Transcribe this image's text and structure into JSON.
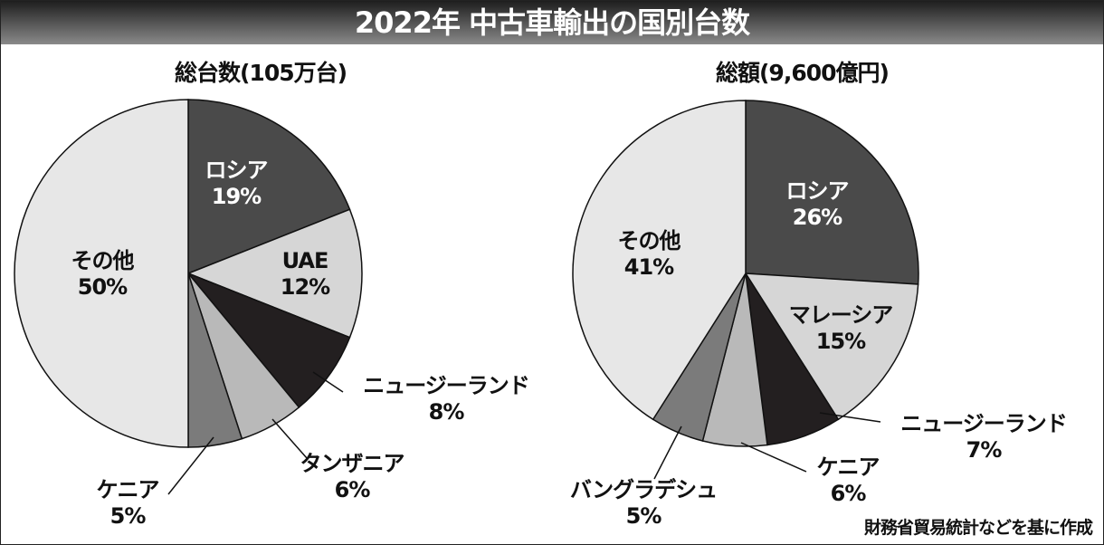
{
  "title": "2022年  中古車輸出の国別台数",
  "source": "財務省貿易統計などを基に作成",
  "chart_data": [
    {
      "type": "pie",
      "title": "総台数(105万台)",
      "categories": [
        "ロシア",
        "UAE",
        "ニュージーランド",
        "タンザニア",
        "ケニア",
        "その他"
      ],
      "values": [
        19,
        12,
        8,
        6,
        5,
        50
      ],
      "labels": [
        "19%",
        "12%",
        "8%",
        "6%",
        "5%",
        "50%"
      ],
      "colors": [
        "#4a4a4a",
        "#d6d6d6",
        "#231f20",
        "#b9b9b9",
        "#7b7b7b",
        "#e7e7e7"
      ]
    },
    {
      "type": "pie",
      "title": "総額(9,600億円)",
      "categories": [
        "ロシア",
        "マレーシア",
        "ニュージーランド",
        "ケニア",
        "バングラデシュ",
        "その他"
      ],
      "values": [
        26,
        15,
        7,
        6,
        5,
        41
      ],
      "labels": [
        "26%",
        "15%",
        "7%",
        "6%",
        "5%",
        "41%"
      ],
      "colors": [
        "#4a4a4a",
        "#d6d6d6",
        "#231f20",
        "#b9b9b9",
        "#7b7b7b",
        "#e7e7e7"
      ]
    }
  ]
}
